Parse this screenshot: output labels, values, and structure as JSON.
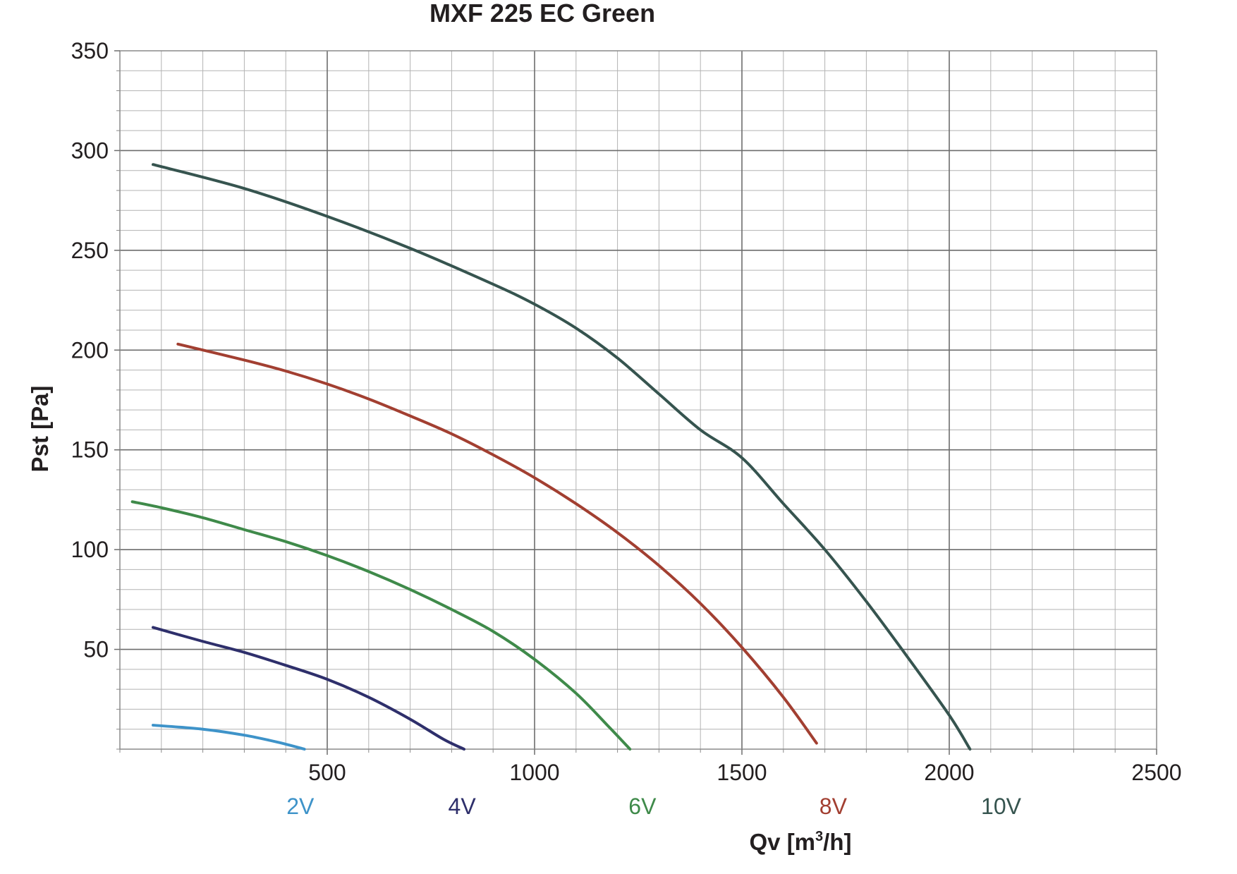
{
  "chart_data": {
    "type": "line",
    "title": "MXF 225 EC Green",
    "xlabel": "Qv [m",
    "xlabel_sup": "3",
    "xlabel_end": "/h]",
    "ylabel": "Pst [Pa]",
    "xlim": [
      0,
      2500
    ],
    "ylim": [
      0,
      350
    ],
    "x_ticks": [
      500,
      1000,
      1500,
      2000,
      2500
    ],
    "y_ticks": [
      50,
      100,
      150,
      200,
      250,
      300,
      350
    ],
    "x_minor_step": 100,
    "y_minor_step": 10,
    "grid": true,
    "series": [
      {
        "name": "2V",
        "color": "#3e93c9",
        "label_x": 435,
        "x": [
          80,
          200,
          300,
          380,
          445
        ],
        "y": [
          12,
          10,
          7,
          3.5,
          0
        ]
      },
      {
        "name": "4V",
        "color": "#2e2f6b",
        "label_x": 825,
        "x": [
          80,
          200,
          300,
          400,
          500,
          600,
          700,
          780,
          830
        ],
        "y": [
          61,
          54,
          48.5,
          42,
          35,
          26,
          15,
          5,
          0
        ]
      },
      {
        "name": "6V",
        "color": "#3f8a4a",
        "label_x": 1260,
        "x": [
          30,
          100,
          200,
          300,
          400,
          500,
          600,
          700,
          800,
          900,
          1000,
          1100,
          1180,
          1230
        ],
        "y": [
          124,
          121,
          116,
          110,
          104,
          97,
          89,
          80,
          70,
          59,
          45,
          28,
          11,
          0
        ]
      },
      {
        "name": "8V",
        "color": "#a23f31",
        "label_x": 1720,
        "x": [
          140,
          300,
          400,
          500,
          600,
          700,
          800,
          900,
          1000,
          1100,
          1200,
          1300,
          1400,
          1500,
          1600,
          1680
        ],
        "y": [
          203,
          195,
          189.5,
          183,
          175.5,
          167,
          158,
          147.5,
          136,
          123,
          108.5,
          92,
          73,
          51,
          26,
          3
        ]
      },
      {
        "name": "10V",
        "color": "#36544f",
        "label_x": 2125,
        "x": [
          80,
          300,
          500,
          700,
          900,
          1000,
          1100,
          1200,
          1300,
          1400,
          1500,
          1600,
          1700,
          1800,
          1900,
          2000,
          2050
        ],
        "y": [
          293,
          281,
          267,
          251,
          233,
          223,
          211,
          196,
          178,
          160,
          146,
          123,
          100,
          74,
          46,
          17,
          0
        ]
      }
    ]
  }
}
